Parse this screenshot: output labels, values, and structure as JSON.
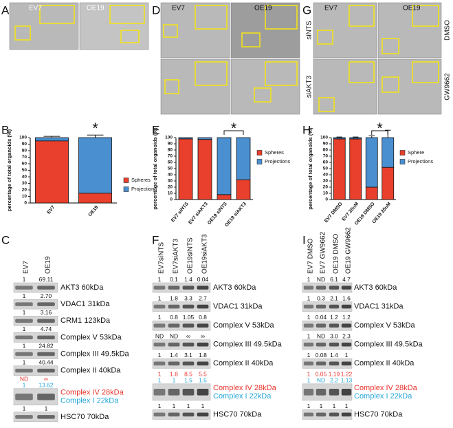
{
  "panels": {
    "A": {
      "letter": "A",
      "labels": [
        "EV7",
        "OE19"
      ]
    },
    "D": {
      "letter": "D",
      "labels": [
        "EV7",
        "OE19"
      ]
    },
    "G": {
      "letter": "G",
      "labels": [
        "EV7",
        "OE19"
      ],
      "row_labels": [
        "siNTS",
        "siAKT3"
      ],
      "side_labels": [
        "DMSO",
        "GW9662"
      ]
    }
  },
  "chart_data": [
    {
      "type": "bar",
      "stacked": true,
      "panel": "B",
      "ylabel": "percentage of total organoids (%)",
      "categories": [
        "EV7",
        "OE19"
      ],
      "series": [
        {
          "name": "Spheres",
          "color": "#e8402c",
          "values": [
            95,
            15
          ],
          "errors": [
            2,
            5
          ]
        },
        {
          "name": "Projection",
          "color": "#4a8fd0",
          "values": [
            5,
            85
          ],
          "errors": [
            2,
            4
          ]
        }
      ],
      "ylim": [
        0,
        100
      ],
      "yticks": [
        0,
        10,
        20,
        30,
        40,
        50,
        60,
        70,
        80,
        90,
        100
      ],
      "annotation": "*"
    },
    {
      "type": "bar",
      "stacked": true,
      "panel": "E",
      "ylabel": "percentage of total organoids (%)",
      "categories": [
        "EV7 siNTS",
        "EV7 siAKT3",
        "OE19 siNTS",
        "OE19 siAKT3"
      ],
      "series": [
        {
          "name": "Spheres",
          "color": "#e8402c",
          "values": [
            98,
            97,
            8,
            32
          ]
        },
        {
          "name": "Projections",
          "color": "#4a8fd0",
          "values": [
            2,
            3,
            92,
            68
          ]
        }
      ],
      "ylim": [
        0,
        100
      ],
      "yticks": [
        0,
        10,
        20,
        30,
        40,
        50,
        60,
        70,
        80,
        90,
        100
      ],
      "annotation": "*"
    },
    {
      "type": "bar",
      "stacked": true,
      "panel": "H",
      "ylabel": "percentage of total organoids (%)",
      "categories": [
        "EV7 DMSO",
        "EV7 20uM",
        "OE19 DMSO",
        "OE19 20uM"
      ],
      "series": [
        {
          "name": "Sphere",
          "color": "#e8402c",
          "values": [
            98,
            98,
            20,
            52
          ],
          "errors": [
            0,
            0,
            2,
            12
          ]
        },
        {
          "name": "Projections",
          "color": "#4a8fd0",
          "values": [
            2,
            2,
            80,
            48
          ],
          "errors": [
            1,
            1,
            3,
            12
          ]
        }
      ],
      "ylim": [
        0,
        100
      ],
      "yticks": [
        0,
        10,
        20,
        30,
        40,
        50,
        60,
        70,
        80,
        90,
        100
      ],
      "annotation": "*"
    }
  ],
  "blots": [
    {
      "panel": "C",
      "columns": [
        "EV7",
        "OE19"
      ],
      "rows": [
        {
          "labels": [
            "AKT3 60kDa"
          ],
          "numbers": [
            [
              "1",
              "69.11"
            ]
          ]
        },
        {
          "labels": [
            "VDAC1 31kDa"
          ],
          "numbers": [
            [
              "1",
              "2.70"
            ]
          ]
        },
        {
          "labels": [
            "CRM1 123kDa"
          ],
          "numbers": [
            [
              "1",
              "3.16"
            ]
          ]
        },
        {
          "labels": [
            "Complex V 53kDa"
          ],
          "numbers": [
            [
              "1",
              "4.74"
            ]
          ]
        },
        {
          "labels": [
            "Complex III 49.5kDa"
          ],
          "numbers": [
            [
              "1",
              "24.82"
            ]
          ]
        },
        {
          "labels": [
            "Complex II 40kDa"
          ],
          "numbers": [
            [
              "1",
              "40.44"
            ]
          ]
        },
        {
          "labels": [
            "Complex IV 28kDa",
            "Complex I 22kDa"
          ],
          "numbers": [
            [
              "ND",
              "∞"
            ],
            [
              "1",
              "13.62"
            ]
          ],
          "colors": [
            "#e8312a",
            "#22a5d8"
          ]
        },
        {
          "labels": [
            "HSC70 70kDa"
          ],
          "numbers": [
            [
              "1",
              "1"
            ]
          ]
        }
      ]
    },
    {
      "panel": "F",
      "columns": [
        "EV7siNTS",
        "EV7siAKT3",
        "OE19siNTS",
        "OE19siAKT3"
      ],
      "rows": [
        {
          "labels": [
            "AKT3 60kDa"
          ],
          "numbers": [
            [
              "1",
              "0.1",
              "1.4",
              "0.04"
            ]
          ]
        },
        {
          "labels": [
            "VDAC1 31kDa"
          ],
          "numbers": [
            [
              "1",
              "1.8",
              "3.3",
              "2.7"
            ]
          ]
        },
        {
          "labels": [
            "Complex V 53kDa"
          ],
          "numbers": [
            [
              "1",
              "0.8",
              "1.05",
              "0.8"
            ]
          ]
        },
        {
          "labels": [
            "Complex III 49.5kDa"
          ],
          "numbers": [
            [
              "ND",
              "ND",
              "∞",
              "∞"
            ]
          ]
        },
        {
          "labels": [
            "Complex II 40kDa"
          ],
          "numbers": [
            [
              "1",
              "1.4",
              "3.1",
              "1.8"
            ]
          ]
        },
        {
          "labels": [
            "Complex IV 28kDa",
            "Complex I 22kDa"
          ],
          "numbers": [
            [
              "1",
              "1.8",
              "8.5",
              "5.5"
            ],
            [
              "1",
              "1",
              "1.5",
              "1.5"
            ]
          ],
          "colors": [
            "#e8312a",
            "#22a5d8"
          ]
        },
        {
          "labels": [
            "HSC70 70kDa"
          ],
          "numbers": [
            [
              "1",
              "1",
              "1",
              "1"
            ]
          ]
        }
      ]
    },
    {
      "panel": "I",
      "columns": [
        "EV7 DMSO",
        "EV7 GW9662",
        "OE19 DMSO",
        "OE19 GW9662"
      ],
      "rows": [
        {
          "labels": [
            "AKT3 60kDa"
          ],
          "numbers": [
            [
              "1",
              "ND",
              "6.1",
              "4.7"
            ]
          ]
        },
        {
          "labels": [
            "VDAC1 31kDa"
          ],
          "numbers": [
            [
              "1",
              "0.3",
              "2.1",
              "1.6"
            ]
          ]
        },
        {
          "labels": [
            "Complex V 53kDa"
          ],
          "numbers": [
            [
              "1",
              "0.04",
              "1.2",
              "1.2"
            ]
          ]
        },
        {
          "labels": [
            "Complex III 49.5kDa"
          ],
          "numbers": [
            [
              "1",
              "ND",
              "3.0",
              "2.3"
            ]
          ]
        },
        {
          "labels": [
            "Complex II 40kDa"
          ],
          "numbers": [
            [
              "1",
              "0.08",
              "1.4",
              "1"
            ]
          ]
        },
        {
          "labels": [
            "Complex IV 28kDa",
            "Complex I 22kDa"
          ],
          "numbers": [
            [
              "1",
              "0.05",
              "1.19",
              "1.22"
            ],
            [
              "1",
              "ND",
              "2.2",
              "1.13"
            ]
          ],
          "colors": [
            "#e8312a",
            "#22a5d8"
          ]
        },
        {
          "labels": [
            "HSC70 70kDa"
          ],
          "numbers": [
            [
              "1",
              "1",
              "1",
              "1"
            ]
          ]
        }
      ]
    }
  ]
}
